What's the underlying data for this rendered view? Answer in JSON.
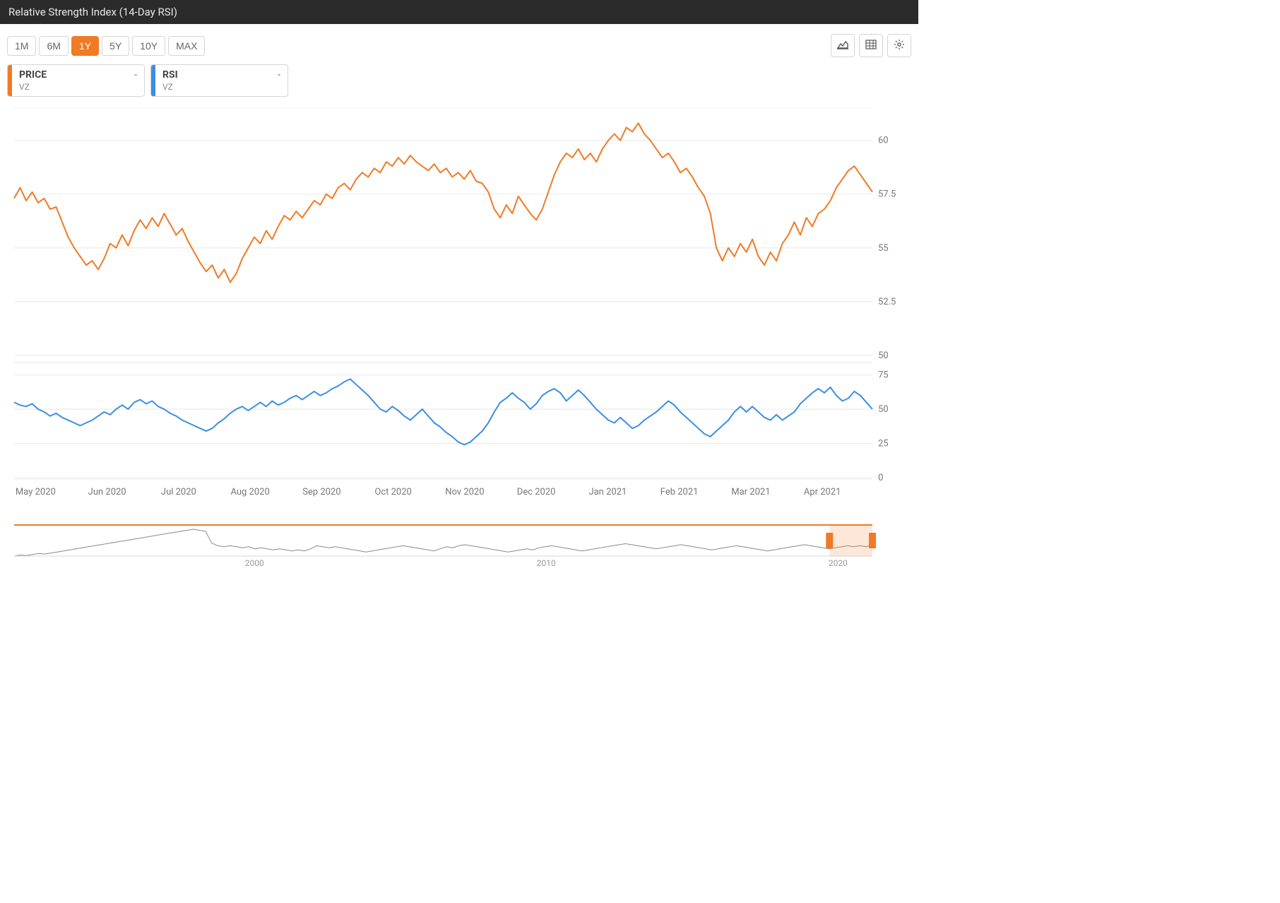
{
  "header": {
    "title": "Relative Strength Index (14-Day RSI)"
  },
  "ranges": {
    "options": [
      "1M",
      "6M",
      "1Y",
      "5Y",
      "10Y",
      "MAX"
    ],
    "active": "1Y"
  },
  "tools": {
    "chart_type_icon": "chart-type",
    "table_icon": "table",
    "settings_icon": "gear"
  },
  "series": [
    {
      "name": "PRICE",
      "symbol": "VZ",
      "value": "-",
      "color": "#f17a25"
    },
    {
      "name": "RSI",
      "symbol": "VZ",
      "value": "-",
      "color": "#3a8ee6"
    }
  ],
  "price_chart": {
    "type": "line",
    "color": "#f17a25",
    "line_width": 2,
    "background_color": "#ffffff",
    "grid_color": "#e8e8e8",
    "ylim": [
      50,
      61.5
    ],
    "yticks": [
      50,
      52.5,
      55,
      57.5,
      60
    ],
    "x_labels": [
      "May 2020",
      "Jun 2020",
      "Jul 2020",
      "Aug 2020",
      "Sep 2020",
      "Oct 2020",
      "Nov 2020",
      "Dec 2020",
      "Jan 2021",
      "Feb 2021",
      "Mar 2021",
      "Apr 2021"
    ],
    "values": [
      57.3,
      57.8,
      57.2,
      57.6,
      57.1,
      57.3,
      56.8,
      56.9,
      56.2,
      55.5,
      55.0,
      54.6,
      54.2,
      54.4,
      54.0,
      54.5,
      55.2,
      55.0,
      55.6,
      55.1,
      55.8,
      56.3,
      55.9,
      56.4,
      56.0,
      56.6,
      56.1,
      55.6,
      55.9,
      55.3,
      54.8,
      54.3,
      53.9,
      54.2,
      53.6,
      54.0,
      53.4,
      53.8,
      54.5,
      55.0,
      55.5,
      55.2,
      55.8,
      55.4,
      56.0,
      56.5,
      56.3,
      56.7,
      56.4,
      56.8,
      57.2,
      57.0,
      57.5,
      57.3,
      57.8,
      58.0,
      57.7,
      58.2,
      58.5,
      58.3,
      58.7,
      58.5,
      59.0,
      58.8,
      59.2,
      58.9,
      59.3,
      59.0,
      58.8,
      58.6,
      58.9,
      58.5,
      58.7,
      58.3,
      58.5,
      58.2,
      58.6,
      58.1,
      58.0,
      57.6,
      56.8,
      56.4,
      57.0,
      56.6,
      57.4,
      57.0,
      56.6,
      56.3,
      56.8,
      57.6,
      58.4,
      59.0,
      59.4,
      59.2,
      59.6,
      59.1,
      59.4,
      59.0,
      59.6,
      60.0,
      60.3,
      60.0,
      60.6,
      60.4,
      60.8,
      60.3,
      60.0,
      59.6,
      59.2,
      59.4,
      59.0,
      58.5,
      58.7,
      58.3,
      57.8,
      57.4,
      56.6,
      55.0,
      54.4,
      55.0,
      54.6,
      55.2,
      54.8,
      55.4,
      54.6,
      54.2,
      54.8,
      54.4,
      55.2,
      55.6,
      56.2,
      55.6,
      56.4,
      56.0,
      56.6,
      56.8,
      57.2,
      57.8,
      58.2,
      58.6,
      58.8,
      58.4,
      58.0,
      57.6
    ]
  },
  "rsi_chart": {
    "type": "line",
    "color": "#3a8ee6",
    "line_width": 2,
    "background_color": "#ffffff",
    "grid_color": "#e8e8e8",
    "ylim": [
      0,
      80
    ],
    "yticks": [
      0,
      25,
      50,
      75
    ],
    "values": [
      55,
      53,
      52,
      54,
      50,
      48,
      45,
      47,
      44,
      42,
      40,
      38,
      40,
      42,
      45,
      48,
      46,
      50,
      53,
      50,
      55,
      57,
      54,
      56,
      52,
      50,
      47,
      45,
      42,
      40,
      38,
      36,
      34,
      36,
      40,
      43,
      47,
      50,
      52,
      49,
      52,
      55,
      52,
      56,
      53,
      55,
      58,
      60,
      57,
      60,
      63,
      60,
      62,
      65,
      67,
      70,
      72,
      68,
      64,
      60,
      55,
      50,
      48,
      52,
      49,
      45,
      42,
      46,
      50,
      45,
      40,
      37,
      33,
      30,
      26,
      24,
      26,
      30,
      34,
      40,
      48,
      55,
      58,
      62,
      58,
      55,
      50,
      54,
      60,
      63,
      65,
      62,
      56,
      60,
      64,
      60,
      55,
      50,
      46,
      42,
      40,
      44,
      40,
      36,
      38,
      42,
      45,
      48,
      52,
      56,
      53,
      48,
      44,
      40,
      36,
      32,
      30,
      34,
      38,
      42,
      48,
      52,
      48,
      52,
      48,
      44,
      42,
      46,
      42,
      45,
      48,
      54,
      58,
      62,
      65,
      62,
      66,
      60,
      56,
      58,
      63,
      60,
      55,
      50
    ]
  },
  "navigator": {
    "type": "area",
    "color_line": "#8a8a8a",
    "color_top": "#f17a25",
    "handle_color": "#f17a25",
    "selection_bg": "rgba(241,122,37,0.18)",
    "x_labels": [
      "2000",
      "2010",
      "2020"
    ],
    "x_label_positions_pct": [
      28,
      62,
      96
    ],
    "values": [
      30,
      32,
      31,
      33,
      35,
      34,
      36,
      38,
      40,
      42,
      44,
      46,
      48,
      50,
      52,
      54,
      56,
      58,
      60,
      62,
      64,
      66,
      68,
      70,
      72,
      74,
      76,
      78,
      80,
      82,
      80,
      78,
      55,
      50,
      48,
      50,
      48,
      46,
      48,
      44,
      46,
      44,
      42,
      44,
      42,
      40,
      42,
      40,
      44,
      50,
      48,
      46,
      48,
      46,
      44,
      42,
      40,
      38,
      40,
      42,
      44,
      46,
      48,
      50,
      48,
      46,
      44,
      42,
      40,
      44,
      48,
      46,
      50,
      52,
      50,
      48,
      46,
      44,
      42,
      40,
      38,
      40,
      42,
      44,
      42,
      46,
      48,
      50,
      48,
      46,
      44,
      42,
      40,
      42,
      44,
      46,
      48,
      50,
      52,
      54,
      52,
      50,
      48,
      46,
      44,
      46,
      48,
      50,
      52,
      50,
      48,
      46,
      44,
      42,
      44,
      46,
      48,
      50,
      48,
      46,
      44,
      42,
      40,
      42,
      44,
      46,
      48,
      50,
      52,
      50,
      48,
      46,
      44,
      46,
      48,
      50,
      48,
      50,
      48,
      52
    ],
    "selection_pct": [
      95,
      100
    ]
  },
  "typography": {
    "axis_fontsize": 13,
    "axis_color": "#777777",
    "header_fontsize": 15
  }
}
